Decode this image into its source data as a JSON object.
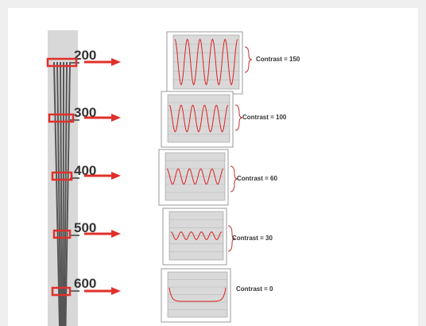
{
  "scale_labels": [
    "200",
    "300",
    "400",
    "500",
    "600"
  ],
  "contrast_labels": [
    "Contrast = 150",
    "Contrast = 100",
    "Contrast = 60",
    "Contrast = 30",
    "Contrast = 0"
  ]
}
